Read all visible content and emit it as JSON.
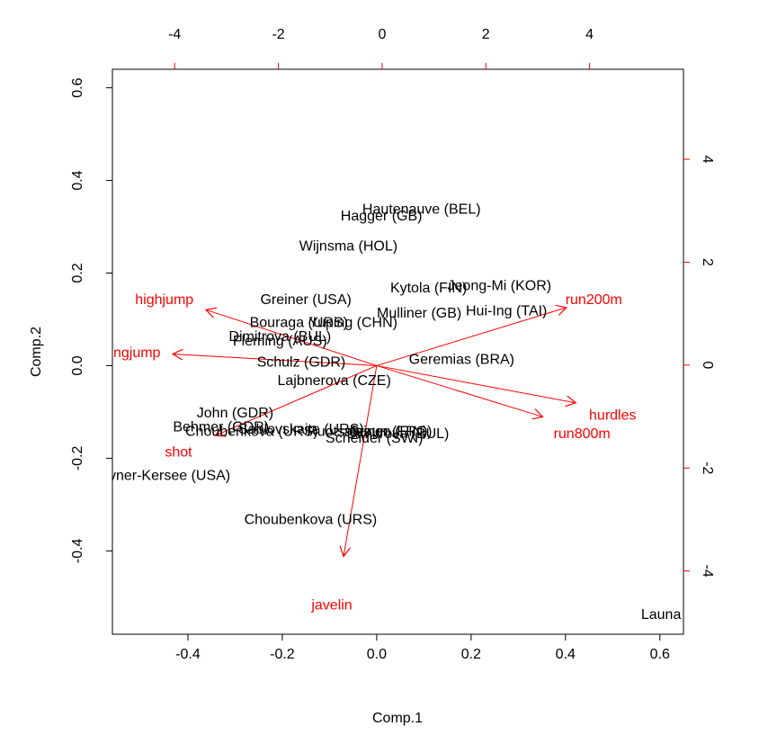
{
  "chart_data": {
    "type": "scatter",
    "subtype": "biplot",
    "title": "",
    "xlabel": "Comp.1",
    "ylabel": "Comp.2",
    "xlim": [
      -0.56,
      0.65
    ],
    "ylim": [
      -0.58,
      0.64
    ],
    "top_axis_lim": [
      -5.2,
      5.81
    ],
    "right_axis_lim": [
      -5.23,
      5.75
    ],
    "bottom_ticks": [
      "-0.4",
      "-0.2",
      "0.0",
      "0.2",
      "0.4",
      "0.6"
    ],
    "bottom_tick_values": [
      -0.4,
      -0.2,
      0.0,
      0.2,
      0.4,
      0.6
    ],
    "left_ticks": [
      "-0.4",
      "-0.2",
      "0.0",
      "0.2",
      "0.4",
      "0.6"
    ],
    "left_tick_values": [
      -0.4,
      -0.2,
      0.0,
      0.2,
      0.4,
      0.6
    ],
    "top_ticks": [
      "-4",
      "-2",
      "0",
      "2",
      "4"
    ],
    "top_tick_values": [
      -4,
      -2,
      0,
      2,
      4
    ],
    "right_ticks": [
      "-4",
      "-2",
      "0",
      "2",
      "4"
    ],
    "right_tick_values": [
      -4,
      -2,
      0,
      2,
      4
    ],
    "grid": false,
    "colors": {
      "observations": "#000000",
      "variables": "#ff0000",
      "frame": "#000000"
    },
    "observations": [
      {
        "label": "Hautenauve (BEL)",
        "x": 0.095,
        "y": 0.34
      },
      {
        "label": "Hagger (GB)",
        "x": 0.01,
        "y": 0.325
      },
      {
        "label": "Wijnsma (HOL)",
        "x": -0.06,
        "y": 0.26
      },
      {
        "label": "Jeong-Mi (KOR)",
        "x": 0.26,
        "y": 0.175
      },
      {
        "label": "Kytola (FIN)",
        "x": 0.11,
        "y": 0.17
      },
      {
        "label": "Greiner (USA)",
        "x": -0.15,
        "y": 0.145
      },
      {
        "label": "Mulliner (GB)",
        "x": 0.09,
        "y": 0.115
      },
      {
        "label": "Hui-Ing (TAI)",
        "x": 0.275,
        "y": 0.12
      },
      {
        "label": "Bouraga (URS)",
        "x": -0.165,
        "y": 0.095
      },
      {
        "label": "Yuping (CHN)",
        "x": -0.05,
        "y": 0.095
      },
      {
        "label": "Dimitrova (BUL)",
        "x": -0.205,
        "y": 0.065
      },
      {
        "label": "Fleming (AUS)",
        "x": -0.205,
        "y": 0.055
      },
      {
        "label": "Schulz (GDR)",
        "x": -0.16,
        "y": 0.01
      },
      {
        "label": "Geremias (BRA)",
        "x": 0.18,
        "y": 0.015
      },
      {
        "label": "Lajbnerova (CZE)",
        "x": -0.09,
        "y": -0.03
      },
      {
        "label": "John (GDR)",
        "x": -0.3,
        "y": -0.1
      },
      {
        "label": "Behmer (GDR)",
        "x": -0.33,
        "y": -0.13
      },
      {
        "label": "Sablovskaite (URS)",
        "x": -0.16,
        "y": -0.135
      },
      {
        "label": "Choubenkova (URS)",
        "x": -0.265,
        "y": -0.14
      },
      {
        "label": "Ruotsalainen (FIN)",
        "x": -0.02,
        "y": -0.14
      },
      {
        "label": "Braun (FRG)",
        "x": 0.03,
        "y": -0.14
      },
      {
        "label": "Scheider (SWI)",
        "x": -0.005,
        "y": -0.155
      },
      {
        "label": "Dimitrova (BUL)",
        "x": 0.045,
        "y": -0.145
      },
      {
        "label": "Joyner-Kersee (USA)",
        "x": -0.455,
        "y": -0.235
      },
      {
        "label": "Choubenkova (URS)",
        "x": -0.14,
        "y": -0.33
      },
      {
        "label": "Launa (PNG)",
        "x": 0.65,
        "y": -0.535
      }
    ],
    "variables": [
      {
        "label": "highjump",
        "x": -0.36,
        "y": 0.12,
        "lx": -0.45,
        "ly": 0.145
      },
      {
        "label": "longjump",
        "x": -0.43,
        "y": 0.025,
        "lx": -0.52,
        "ly": 0.03
      },
      {
        "label": "run200m",
        "x": 0.4,
        "y": 0.125,
        "lx": 0.46,
        "ly": 0.145
      },
      {
        "label": "hurdles",
        "x": 0.42,
        "y": -0.08,
        "lx": 0.5,
        "ly": -0.105
      },
      {
        "label": "run800m",
        "x": 0.35,
        "y": -0.11,
        "lx": 0.435,
        "ly": -0.145
      },
      {
        "label": "shot",
        "x": -0.34,
        "y": -0.15,
        "lx": -0.42,
        "ly": -0.185
      },
      {
        "label": "javelin",
        "x": -0.07,
        "y": -0.41,
        "lx": -0.095,
        "ly": -0.515
      }
    ]
  }
}
